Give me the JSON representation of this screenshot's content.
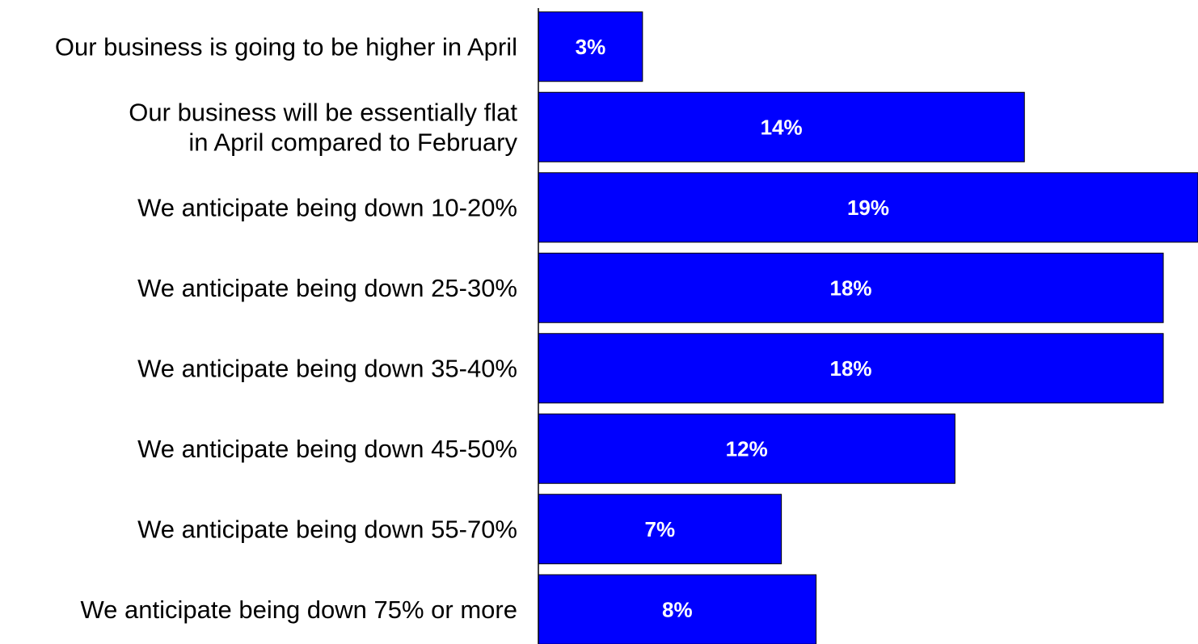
{
  "chart_data": {
    "type": "bar",
    "orientation": "horizontal",
    "categories": [
      [
        "Our business is going to be higher in April"
      ],
      [
        "Our business will be essentially flat",
        "in April compared to February"
      ],
      [
        "We anticipate being down 10-20%"
      ],
      [
        "We anticipate being down 25-30%"
      ],
      [
        "We anticipate being down 35-40%"
      ],
      [
        "We anticipate being down 45-50%"
      ],
      [
        "We anticipate being down 55-70%"
      ],
      [
        "We anticipate being down 75% or more"
      ]
    ],
    "values": [
      3,
      14,
      19,
      18,
      18,
      12,
      7,
      8
    ],
    "value_labels": [
      "3%",
      "14%",
      "19%",
      "18%",
      "18%",
      "12%",
      "7%",
      "8%"
    ],
    "unit": "%",
    "xlim": [
      0,
      19
    ],
    "grid": false,
    "legend": "none",
    "title": "",
    "xlabel": "",
    "ylabel": "",
    "colors": {
      "bar": "#0000ff",
      "bar_edge": "#000000",
      "value_label": "#ffffff",
      "axis": "#000000"
    }
  }
}
